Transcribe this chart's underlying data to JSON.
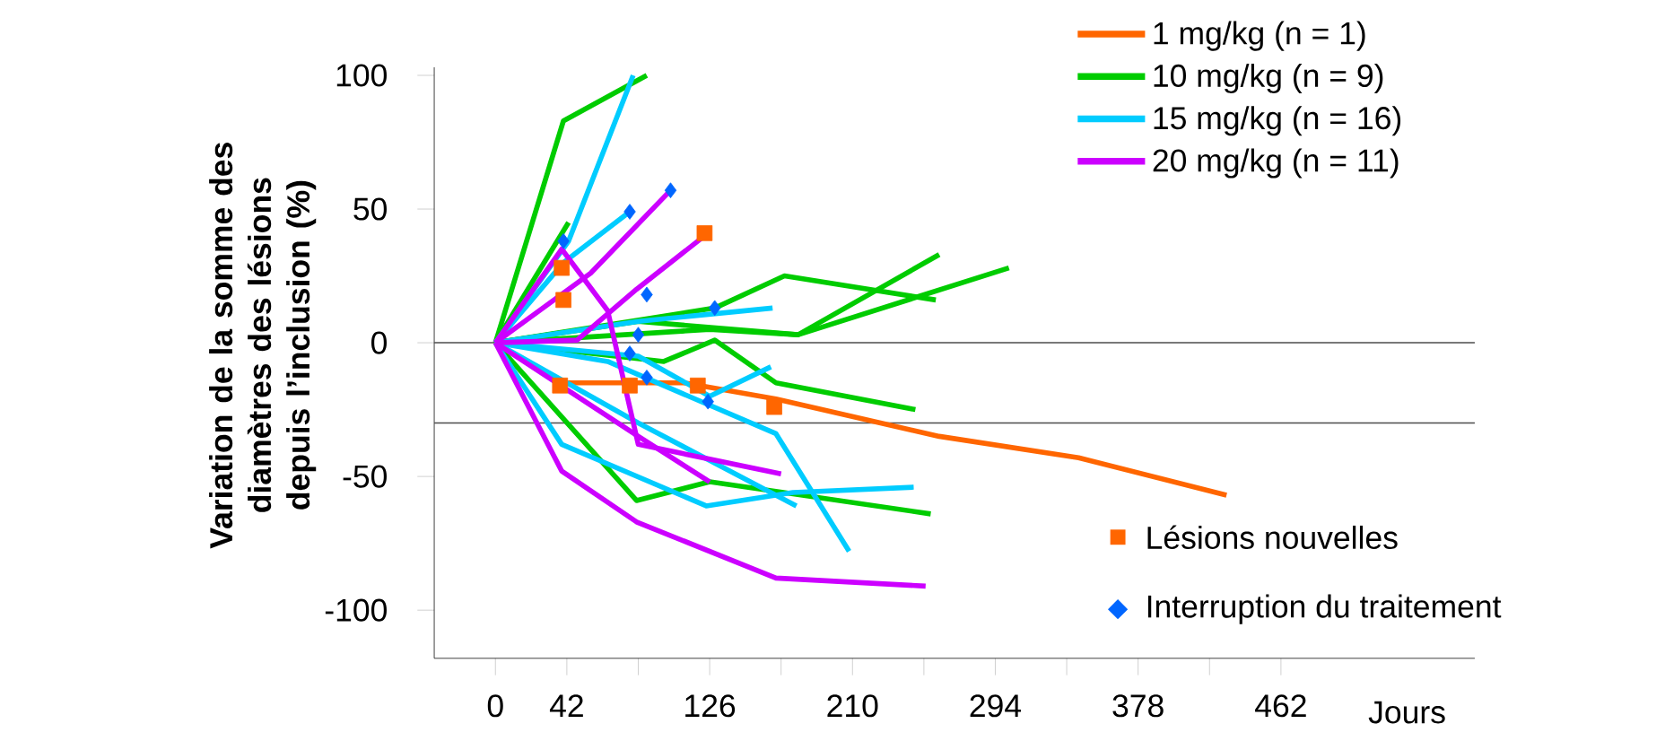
{
  "chart_data": {
    "type": "line",
    "xlabel": "Jours",
    "ylabel": "Variation de la somme des diamètres des lésions depuis l’inclusion (%)",
    "xlim": [
      -36,
      576
    ],
    "ylim": [
      -118,
      103
    ],
    "xticks": [
      0,
      42,
      {
        "value": 84,
        "label": null
      },
      126,
      {
        "value": 168,
        "label": null
      },
      210,
      {
        "value": 252,
        "label": null
      },
      294,
      {
        "value": 336,
        "label": null
      },
      378,
      {
        "value": 420,
        "label": null
      },
      462
    ],
    "yticks": [
      -100,
      -50,
      0,
      50,
      100
    ],
    "legend": "top right",
    "marker": "none",
    "line_style": "solid",
    "ref_lines": [
      {
        "axis": "y",
        "value": 0
      },
      {
        "axis": "y",
        "value": -30
      }
    ],
    "series": [
      {
        "name": "1 mg/kg (n = 1)",
        "color": "#ff6600",
        "x": [
          0,
          39,
          111,
          165,
          261,
          343,
          430
        ],
        "values": [
          0,
          -15,
          -15,
          -21,
          -35,
          -43,
          -57
        ]
      },
      {
        "name": "10 mg/kg (n = 9)",
        "color": "#00cc00",
        "x": [
          0,
          40,
          89
        ],
        "values": [
          0,
          83,
          100
        ]
      },
      {
        "color": "#00cc00",
        "x": [
          0,
          43
        ],
        "values": [
          0,
          45
        ]
      },
      {
        "color": "#00cc00",
        "x": [
          0,
          129,
          170,
          259
        ],
        "values": [
          0,
          13,
          25,
          16
        ]
      },
      {
        "color": "#00cc00",
        "x": [
          0,
          84,
          178,
          261
        ],
        "values": [
          0,
          8,
          3,
          33
        ]
      },
      {
        "color": "#00cc00",
        "x": [
          0,
          126,
          178,
          302
        ],
        "values": [
          0,
          5,
          3,
          28
        ]
      },
      {
        "color": "#00cc00",
        "x": [
          0,
          99,
          129,
          165,
          247
        ],
        "values": [
          0,
          -7,
          1,
          -15,
          -25
        ]
      },
      {
        "color": "#00cc00",
        "x": [
          0,
          83,
          126,
          256
        ],
        "values": [
          0,
          -59,
          -52,
          -64
        ]
      },
      {
        "name": "15 mg/kg (n = 16)",
        "color": "#00ccff",
        "x": [
          0,
          43,
          81
        ],
        "values": [
          0,
          38,
          100
        ]
      },
      {
        "color": "#00ccff",
        "x": [
          0,
          40,
          79
        ],
        "values": [
          0,
          30,
          49
        ]
      },
      {
        "color": "#00ccff",
        "x": [
          0,
          84,
          163
        ],
        "values": [
          0,
          8,
          13
        ]
      },
      {
        "color": "#00ccff",
        "x": [
          0,
          84,
          126,
          162
        ],
        "values": [
          0,
          -5,
          -20,
          -9
        ]
      },
      {
        "color": "#00ccff",
        "x": [
          0,
          66,
          165,
          208
        ],
        "values": [
          0,
          -7,
          -34,
          -78
        ]
      },
      {
        "color": "#00ccff",
        "x": [
          0,
          39,
          124,
          175,
          246
        ],
        "values": [
          0,
          -38,
          -61,
          -56,
          -54
        ]
      },
      {
        "color": "#00ccff",
        "x": [
          0,
          84,
          177
        ],
        "values": [
          0,
          -30,
          -61
        ]
      },
      {
        "name": "20 mg/kg (n = 11)",
        "color": "#cc00ff",
        "x": [
          0,
          56,
          103
        ],
        "values": [
          0,
          26,
          57
        ]
      },
      {
        "color": "#cc00ff",
        "x": [
          0,
          48,
          83,
          123
        ],
        "values": [
          0,
          1,
          20,
          40
        ]
      },
      {
        "color": "#cc00ff",
        "x": [
          0,
          39,
          66,
          84,
          168
        ],
        "values": [
          0,
          35,
          12,
          -38,
          -49
        ]
      },
      {
        "color": "#cc00ff",
        "x": [
          0,
          39,
          83,
          165,
          253
        ],
        "values": [
          0,
          -48,
          -67,
          -88,
          -91
        ]
      },
      {
        "color": "#cc00ff",
        "x": [
          0,
          84,
          126
        ],
        "values": [
          0,
          -35,
          -52
        ]
      },
      {
        "name": "Lésions nouvelles",
        "type": "scatter",
        "marker": "square",
        "color": "#ff6600",
        "x": [
          38,
          39,
          40,
          79,
          119,
          123,
          164
        ],
        "values": [
          -16,
          28,
          16,
          -16,
          -16,
          41,
          -24
        ]
      },
      {
        "name": "Interruption du traitement",
        "type": "scatter",
        "marker": "diamond",
        "color": "#0066ff",
        "x": [
          40,
          79,
          103,
          89,
          129,
          84,
          79,
          89,
          125
        ],
        "values": [
          38,
          49,
          57,
          18,
          13,
          3,
          -4,
          -13,
          -22
        ]
      }
    ]
  }
}
